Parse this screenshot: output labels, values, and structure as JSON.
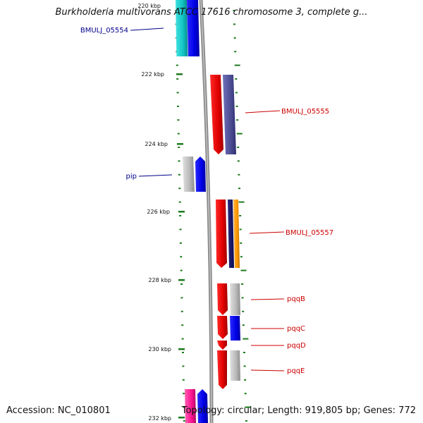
{
  "title": "Burkholderia multivorans ATCC 17616 chromosome 3, complete g...",
  "accession_text": "Accession: NC_010801",
  "topology_text": "Topology: circular; Length: 919,805 bp; Genes: 772",
  "colors": {
    "backbone": "#8e8e8e",
    "tick": "#1e7a1e",
    "label_forward": "#00008b",
    "label_reverse": "#cc0000"
  },
  "axis": {
    "unit": "kbp",
    "labeled_ticks": [
      "220 kbp",
      "222 kbp",
      "224 kbp",
      "226 kbp",
      "228 kbp",
      "230 kbp",
      "232 kbp"
    ]
  },
  "genes": [
    {
      "label": "BMULJ_05554",
      "strand": "forward",
      "color": "#0000ff"
    },
    {
      "label": "BMULJ_05555",
      "strand": "reverse",
      "color": "#e00000"
    },
    {
      "label": "pip",
      "strand": "forward",
      "color": "#0000ff"
    },
    {
      "label": "BMULJ_05557",
      "strand": "reverse",
      "color": "#e00000"
    },
    {
      "label": "pqqB",
      "strand": "reverse",
      "color": "#e00000"
    },
    {
      "label": "pqqC",
      "strand": "reverse",
      "color": "#e00000"
    },
    {
      "label": "pqqD",
      "strand": "reverse",
      "color": "#e00000"
    },
    {
      "label": "pqqE",
      "strand": "reverse",
      "color": "#e00000"
    },
    {
      "label": "",
      "strand": "forward",
      "color": "#0000ff"
    }
  ]
}
